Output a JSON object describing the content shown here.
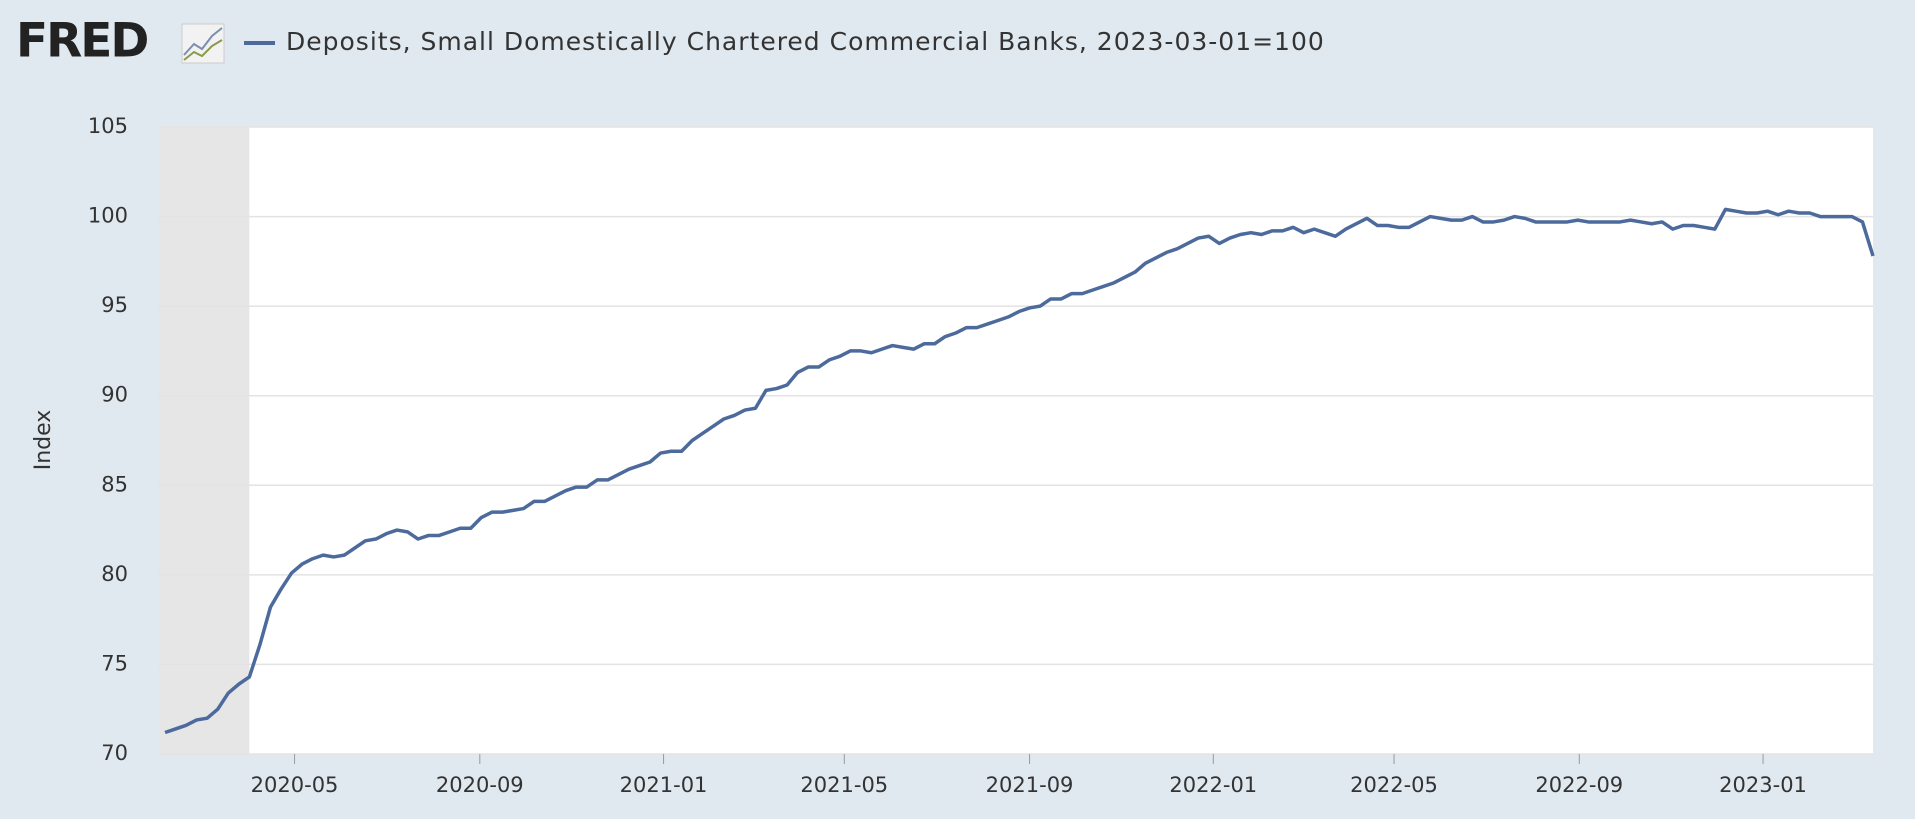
{
  "logo": "FRED",
  "chart_data": {
    "type": "line",
    "ylabel": "Index",
    "x": [
      "2020-02-05",
      "2020-02-12",
      "2020-02-19",
      "2020-02-26",
      "2020-03-04",
      "2020-03-11",
      "2020-03-18",
      "2020-03-25",
      "2020-04-01",
      "2020-04-08",
      "2020-04-15",
      "2020-04-22",
      "2020-04-29",
      "2020-05-06",
      "2020-05-13",
      "2020-05-20",
      "2020-05-27",
      "2020-06-03",
      "2020-06-10",
      "2020-06-17",
      "2020-06-24",
      "2020-07-01",
      "2020-07-08",
      "2020-07-15",
      "2020-07-22",
      "2020-07-29",
      "2020-08-05",
      "2020-08-12",
      "2020-08-19",
      "2020-08-26",
      "2020-09-02",
      "2020-09-09",
      "2020-09-16",
      "2020-09-23",
      "2020-09-30",
      "2020-10-07",
      "2020-10-14",
      "2020-10-21",
      "2020-10-28",
      "2020-11-04",
      "2020-11-11",
      "2020-11-18",
      "2020-11-25",
      "2020-12-02",
      "2020-12-09",
      "2020-12-16",
      "2020-12-23",
      "2020-12-30",
      "2021-01-06",
      "2021-01-13",
      "2021-01-20",
      "2021-01-27",
      "2021-02-03",
      "2021-02-10",
      "2021-02-17",
      "2021-02-24",
      "2021-03-03",
      "2021-03-10",
      "2021-03-17",
      "2021-03-24",
      "2021-03-31",
      "2021-04-07",
      "2021-04-14",
      "2021-04-21",
      "2021-04-28",
      "2021-05-05",
      "2021-05-12",
      "2021-05-19",
      "2021-05-26",
      "2021-06-02",
      "2021-06-09",
      "2021-06-16",
      "2021-06-23",
      "2021-06-30",
      "2021-07-07",
      "2021-07-14",
      "2021-07-21",
      "2021-07-28",
      "2021-08-04",
      "2021-08-11",
      "2021-08-18",
      "2021-08-25",
      "2021-09-01",
      "2021-09-08",
      "2021-09-15",
      "2021-09-22",
      "2021-09-29",
      "2021-10-06",
      "2021-10-13",
      "2021-10-20",
      "2021-10-27",
      "2021-11-03",
      "2021-11-10",
      "2021-11-17",
      "2021-11-24",
      "2021-12-01",
      "2021-12-08",
      "2021-12-15",
      "2021-12-22",
      "2021-12-29",
      "2022-01-05",
      "2022-01-12",
      "2022-01-19",
      "2022-01-26",
      "2022-02-02",
      "2022-02-09",
      "2022-02-16",
      "2022-02-23",
      "2022-03-02",
      "2022-03-09",
      "2022-03-16",
      "2022-03-23",
      "2022-03-30",
      "2022-04-06",
      "2022-04-13",
      "2022-04-20",
      "2022-04-27",
      "2022-05-04",
      "2022-05-11",
      "2022-05-18",
      "2022-05-25",
      "2022-06-01",
      "2022-06-08",
      "2022-06-15",
      "2022-06-22",
      "2022-06-29",
      "2022-07-06",
      "2022-07-13",
      "2022-07-20",
      "2022-07-27",
      "2022-08-03",
      "2022-08-10",
      "2022-08-17",
      "2022-08-24",
      "2022-08-31",
      "2022-09-07",
      "2022-09-14",
      "2022-09-21",
      "2022-09-28",
      "2022-10-05",
      "2022-10-12",
      "2022-10-19",
      "2022-10-26",
      "2022-11-02",
      "2022-11-09",
      "2022-11-16",
      "2022-11-23",
      "2022-11-30",
      "2022-12-07",
      "2022-12-14",
      "2022-12-21",
      "2022-12-28",
      "2023-01-04",
      "2023-01-11",
      "2023-01-18",
      "2023-01-25",
      "2023-02-01",
      "2023-02-08",
      "2023-02-15",
      "2023-02-22",
      "2023-03-01",
      "2023-03-08",
      "2023-03-15"
    ],
    "series": [
      {
        "name": "Deposits, Small Domestically Chartered Commercial Banks, 2023-03-01=100",
        "color": "#4c6a9c",
        "values": [
          71.2,
          71.4,
          71.6,
          71.9,
          72.0,
          72.5,
          73.4,
          73.9,
          74.3,
          76.1,
          78.2,
          79.2,
          80.1,
          80.6,
          80.9,
          81.1,
          81.0,
          81.1,
          81.5,
          81.9,
          82.0,
          82.3,
          82.5,
          82.4,
          82.0,
          82.2,
          82.2,
          82.4,
          82.6,
          82.6,
          83.2,
          83.5,
          83.5,
          83.6,
          83.7,
          84.1,
          84.1,
          84.4,
          84.7,
          84.9,
          84.9,
          85.3,
          85.3,
          85.6,
          85.9,
          86.1,
          86.3,
          86.8,
          86.9,
          86.9,
          87.5,
          87.9,
          88.3,
          88.7,
          88.9,
          89.2,
          89.3,
          90.3,
          90.4,
          90.6,
          91.3,
          91.6,
          91.6,
          92.0,
          92.2,
          92.5,
          92.5,
          92.4,
          92.6,
          92.8,
          92.7,
          92.6,
          92.9,
          92.9,
          93.3,
          93.5,
          93.8,
          93.8,
          94.0,
          94.2,
          94.4,
          94.7,
          94.9,
          95.0,
          95.4,
          95.4,
          95.7,
          95.7,
          95.9,
          96.1,
          96.3,
          96.6,
          96.9,
          97.4,
          97.7,
          98.0,
          98.2,
          98.5,
          98.8,
          98.9,
          98.5,
          98.8,
          99.0,
          99.1,
          99.0,
          99.2,
          99.2,
          99.4,
          99.1,
          99.3,
          99.1,
          98.9,
          99.3,
          99.6,
          99.9,
          99.5,
          99.5,
          99.4,
          99.4,
          99.7,
          100.0,
          99.9,
          99.8,
          99.8,
          100.0,
          99.7,
          99.7,
          99.8,
          100.0,
          99.9,
          99.7,
          99.7,
          99.7,
          99.7,
          99.8,
          99.7,
          99.7,
          99.7,
          99.7,
          99.8,
          99.7,
          99.6,
          99.7,
          99.3,
          99.5,
          99.5,
          99.4,
          99.3,
          100.4,
          100.3,
          100.2,
          100.2,
          100.3,
          100.1,
          100.3,
          100.2,
          100.2,
          100.0,
          100.0,
          100.0,
          100.0,
          99.7,
          97.8
        ]
      }
    ],
    "xlim": [
      "2020-02-01",
      "2023-03-15"
    ],
    "xticks": [
      {
        "value": "2020-05-01",
        "label": "2020-05"
      },
      {
        "value": "2020-09-01",
        "label": "2020-09"
      },
      {
        "value": "2021-01-01",
        "label": "2021-01"
      },
      {
        "value": "2021-05-01",
        "label": "2021-05"
      },
      {
        "value": "2021-09-01",
        "label": "2021-09"
      },
      {
        "value": "2022-01-01",
        "label": "2022-01"
      },
      {
        "value": "2022-05-01",
        "label": "2022-05"
      },
      {
        "value": "2022-09-01",
        "label": "2022-09"
      },
      {
        "value": "2023-01-01",
        "label": "2023-01"
      }
    ],
    "ylim": [
      70,
      105
    ],
    "yticks": [
      70,
      75,
      80,
      85,
      90,
      95,
      100,
      105
    ],
    "grid": true,
    "recession": [
      "2020-02-01",
      "2020-04-01"
    ]
  }
}
